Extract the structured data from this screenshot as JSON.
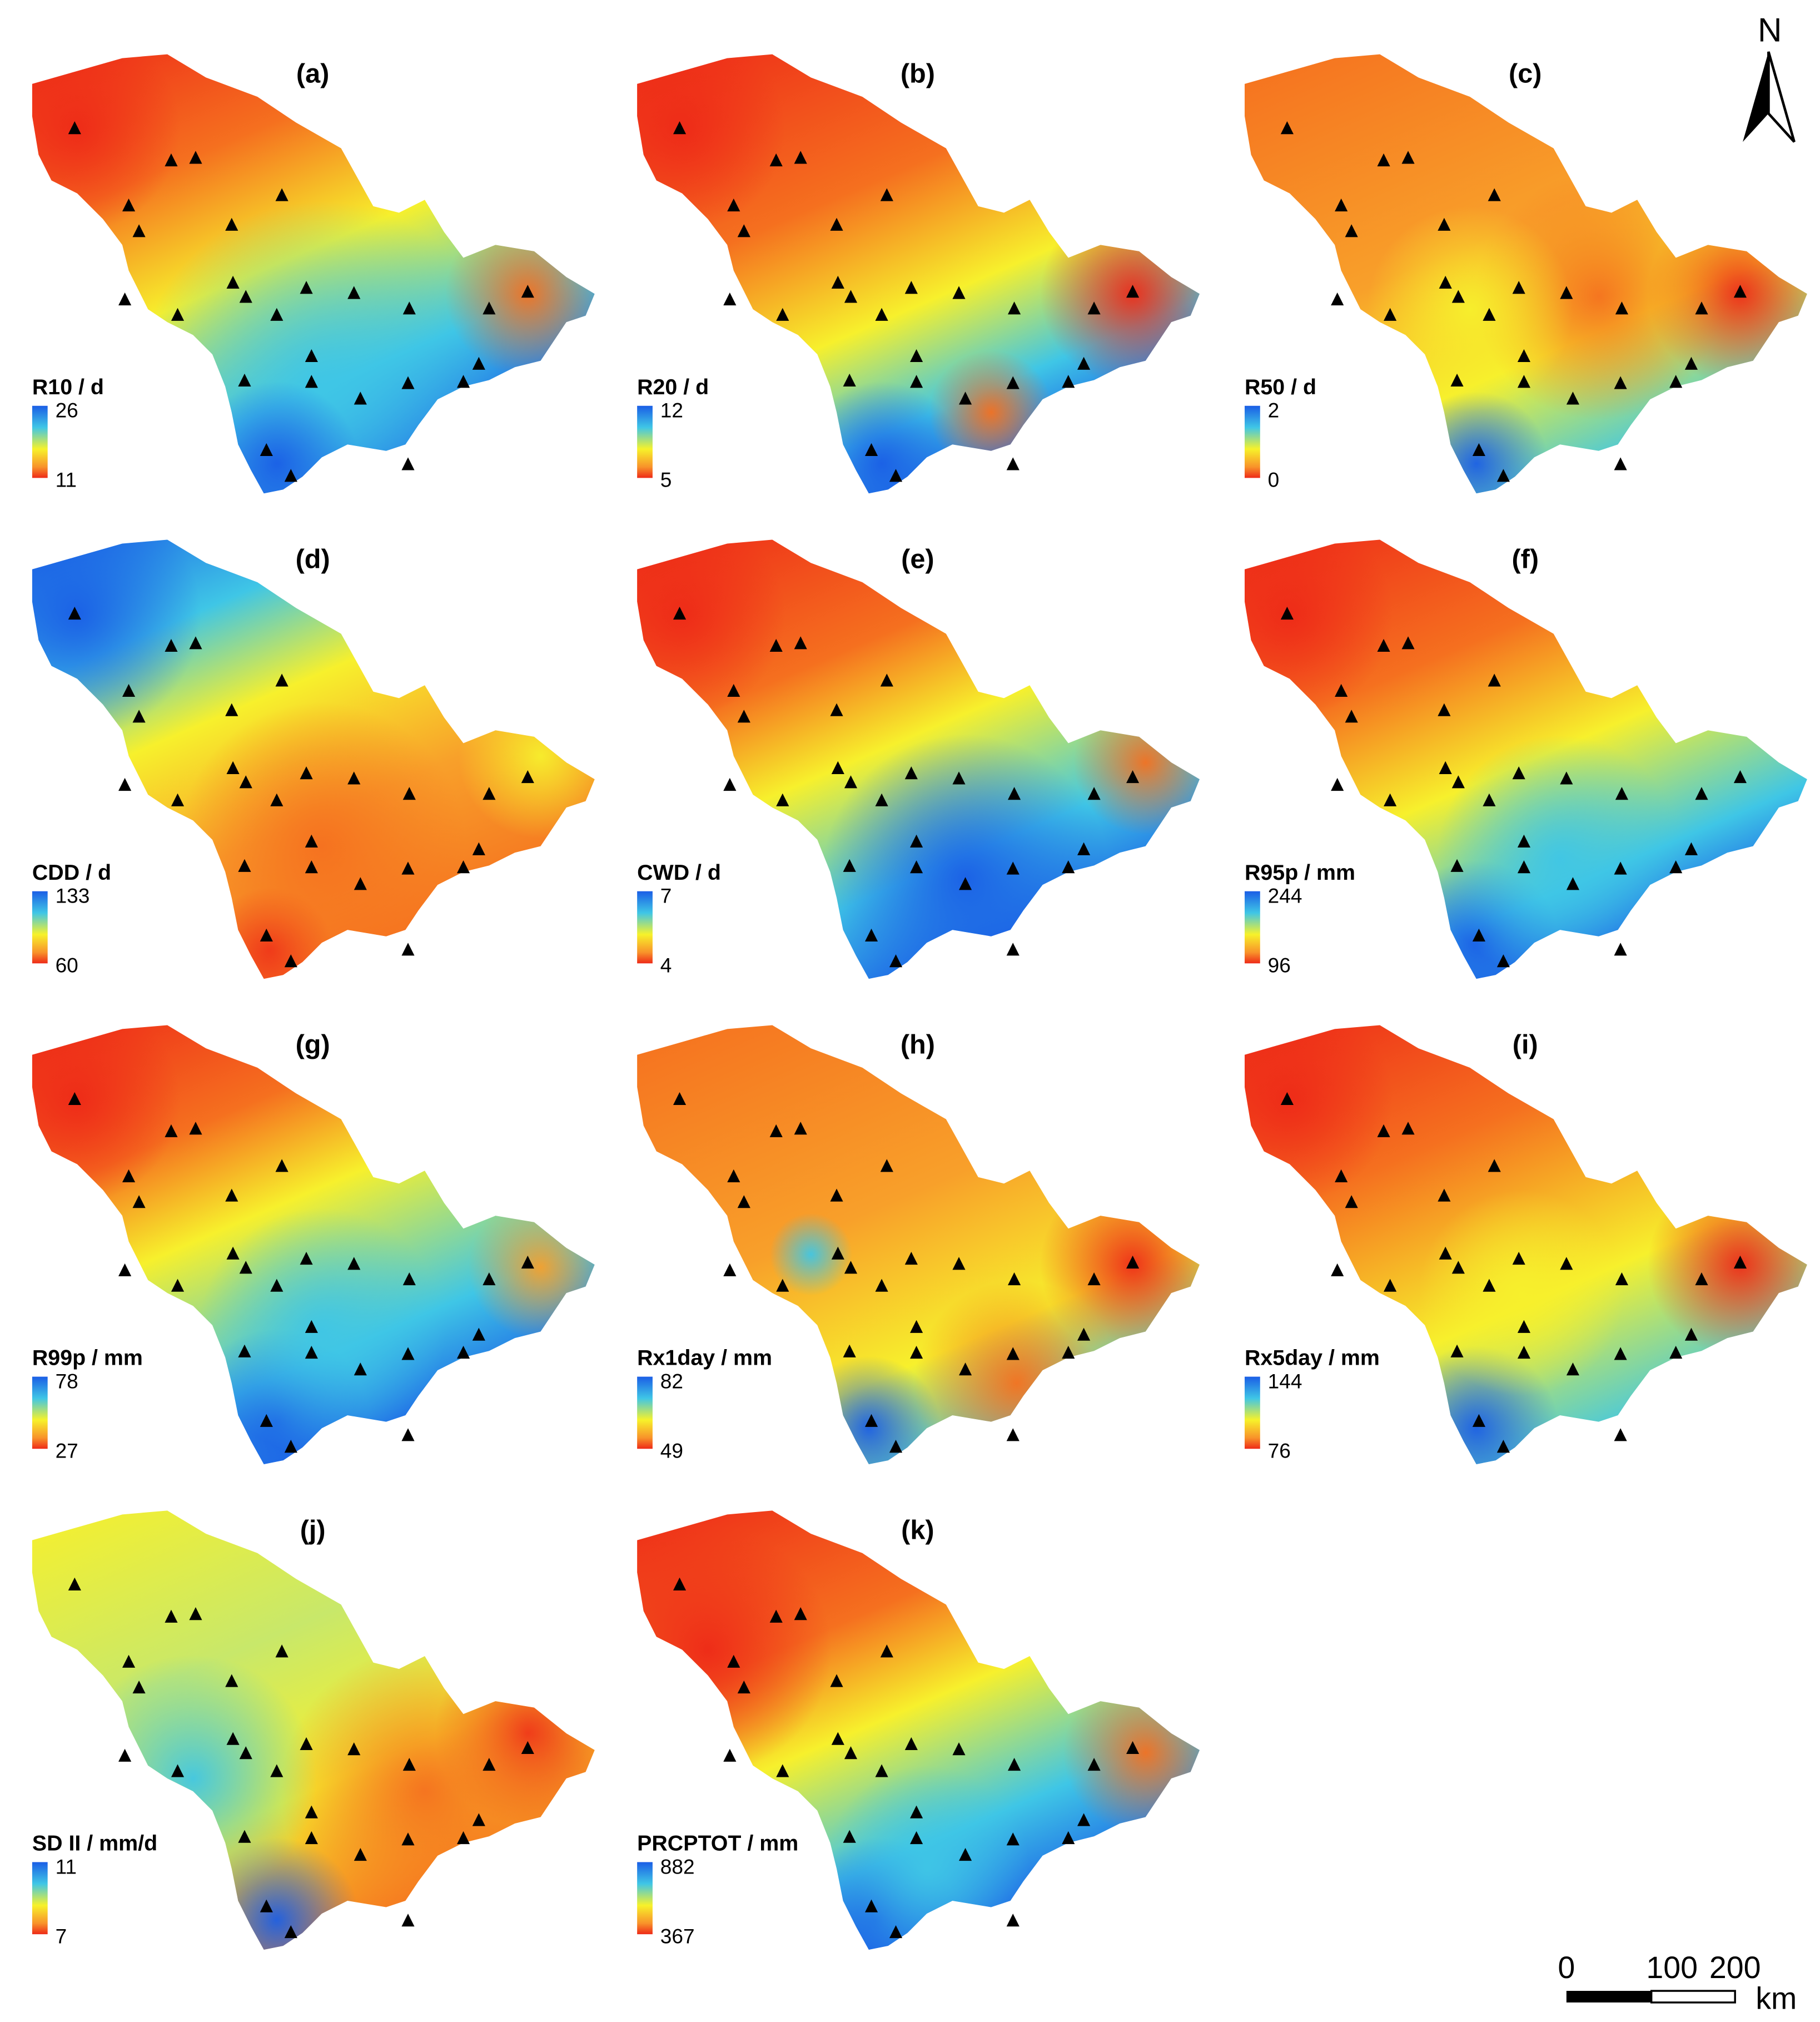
{
  "north": "N",
  "scale_bar": {
    "ticks": [
      0,
      100,
      200
    ],
    "unit": "km"
  },
  "panels": [
    {
      "label": "(a)",
      "legend_title": "R10 / d",
      "max": 26,
      "min": 11
    },
    {
      "label": "(b)",
      "legend_title": "R20 / d",
      "max": 12,
      "min": 5
    },
    {
      "label": "(c)",
      "legend_title": "R50 / d",
      "max": 2,
      "min": 0
    },
    {
      "label": "(d)",
      "legend_title": "CDD / d",
      "max": 133,
      "min": 60
    },
    {
      "label": "(e)",
      "legend_title": "CWD / d",
      "max": 7,
      "min": 4
    },
    {
      "label": "(f)",
      "legend_title": "R95p / mm",
      "max": 244,
      "min": 96
    },
    {
      "label": "(g)",
      "legend_title": "R99p / mm",
      "max": 78,
      "min": 27
    },
    {
      "label": "(h)",
      "legend_title": "Rx1day / mm",
      "max": 82,
      "min": 49
    },
    {
      "label": "(i)",
      "legend_title": "Rx5day / mm",
      "max": 144,
      "min": 76
    },
    {
      "label": "(j)",
      "legend_title": "SD II / mm/d",
      "max": 11,
      "min": 7
    },
    {
      "label": "(k)",
      "legend_title": "PRCPTOT / mm",
      "max": 882,
      "min": 367
    }
  ]
}
